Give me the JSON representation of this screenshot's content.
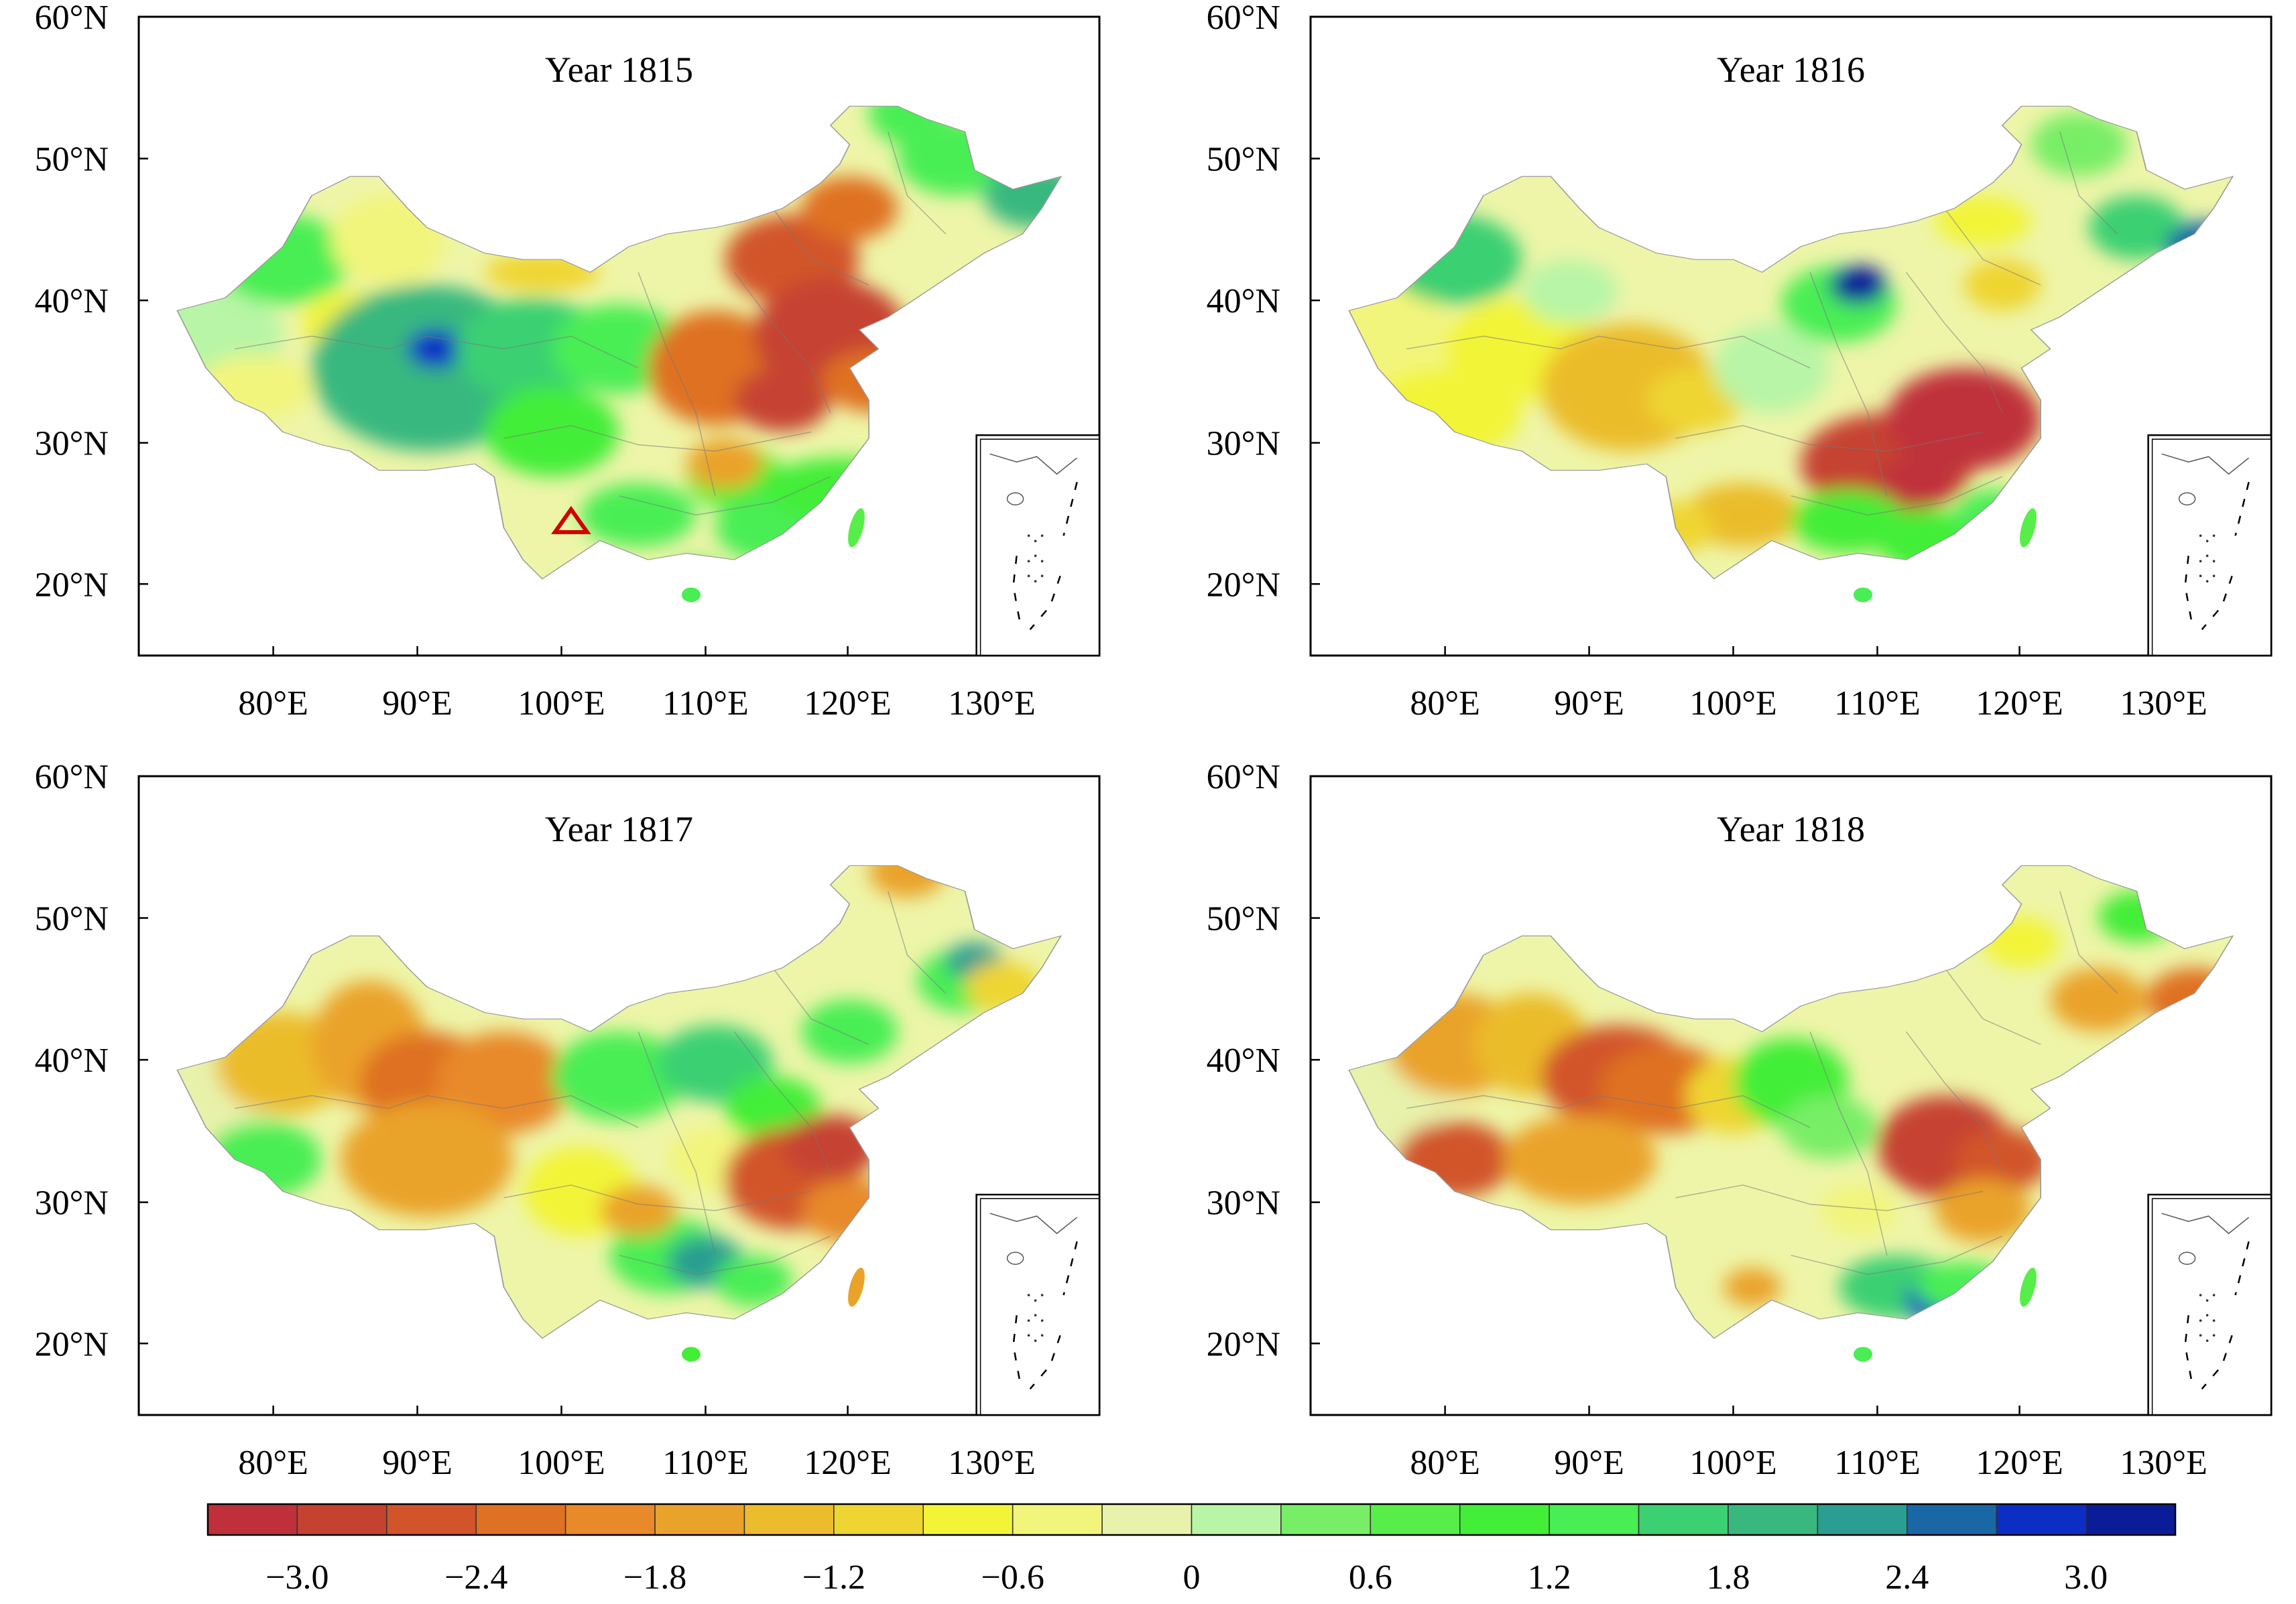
{
  "panels": [
    {
      "title": "Year 1815",
      "marker": "red-triangle",
      "blobs": [
        [
          0.05,
          0.5,
          0.1,
          0.09,
          0.2
        ],
        [
          0.15,
          0.38,
          0.07,
          0.07,
          1.3
        ],
        [
          0.26,
          0.35,
          0.06,
          0.07,
          -0.5
        ],
        [
          0.22,
          0.48,
          0.05,
          0.05,
          -0.7
        ],
        [
          0.12,
          0.58,
          0.06,
          0.05,
          -0.5
        ],
        [
          0.3,
          0.55,
          0.12,
          0.13,
          1.8
        ],
        [
          0.31,
          0.52,
          0.03,
          0.03,
          2.8
        ],
        [
          0.41,
          0.52,
          0.08,
          0.08,
          1.5
        ],
        [
          0.5,
          0.52,
          0.07,
          0.07,
          1.2
        ],
        [
          0.43,
          0.65,
          0.07,
          0.07,
          1.0
        ],
        [
          0.42,
          0.4,
          0.06,
          0.03,
          -1.0
        ],
        [
          0.52,
          0.78,
          0.06,
          0.05,
          1.3
        ],
        [
          0.62,
          0.72,
          0.05,
          0.05,
          0.9
        ],
        [
          0.68,
          0.8,
          0.08,
          0.06,
          1.3
        ],
        [
          0.73,
          0.74,
          0.08,
          0.05,
          1.0
        ],
        [
          0.6,
          0.55,
          0.07,
          0.09,
          -2.4
        ],
        [
          0.68,
          0.38,
          0.07,
          0.07,
          -2.5
        ],
        [
          0.67,
          0.6,
          0.05,
          0.05,
          -2.8
        ],
        [
          0.72,
          0.5,
          0.08,
          0.09,
          -2.8
        ],
        [
          0.77,
          0.57,
          0.06,
          0.05,
          -2.4
        ],
        [
          0.74,
          0.3,
          0.05,
          0.05,
          -2.3
        ],
        [
          0.8,
          0.15,
          0.04,
          0.05,
          1.2
        ],
        [
          0.85,
          0.22,
          0.06,
          0.06,
          1.4
        ],
        [
          0.93,
          0.28,
          0.05,
          0.05,
          2.0
        ],
        [
          0.61,
          0.7,
          0.04,
          0.04,
          -1.6
        ],
        [
          0.58,
          0.88,
          0.03,
          0.03,
          1.3
        ]
      ]
    },
    {
      "title": "Year 1816",
      "marker": "",
      "blobs": [
        [
          0.05,
          0.5,
          0.1,
          0.09,
          -0.5
        ],
        [
          0.15,
          0.38,
          0.07,
          0.07,
          1.5
        ],
        [
          0.22,
          0.52,
          0.08,
          0.08,
          -0.8
        ],
        [
          0.14,
          0.62,
          0.08,
          0.07,
          -0.7
        ],
        [
          0.27,
          0.43,
          0.05,
          0.05,
          0.2
        ],
        [
          0.33,
          0.58,
          0.09,
          0.1,
          -1.4
        ],
        [
          0.4,
          0.6,
          0.05,
          0.05,
          -1.0
        ],
        [
          0.48,
          0.55,
          0.06,
          0.07,
          0.2
        ],
        [
          0.55,
          0.45,
          0.06,
          0.06,
          1.4
        ],
        [
          0.57,
          0.42,
          0.03,
          0.03,
          3.0
        ],
        [
          0.45,
          0.78,
          0.06,
          0.05,
          -1.2
        ],
        [
          0.38,
          0.8,
          0.04,
          0.04,
          -1.0
        ],
        [
          0.6,
          0.7,
          0.09,
          0.08,
          -2.9
        ],
        [
          0.68,
          0.63,
          0.08,
          0.08,
          -3.0
        ],
        [
          0.63,
          0.73,
          0.04,
          0.04,
          -3.0
        ],
        [
          0.56,
          0.79,
          0.06,
          0.05,
          1.1
        ],
        [
          0.64,
          0.82,
          0.05,
          0.05,
          1.0
        ],
        [
          0.71,
          0.78,
          0.04,
          0.04,
          1.3
        ],
        [
          0.7,
          0.32,
          0.05,
          0.04,
          -0.8
        ],
        [
          0.72,
          0.42,
          0.04,
          0.04,
          -1.0
        ],
        [
          0.8,
          0.2,
          0.05,
          0.05,
          0.3
        ],
        [
          0.86,
          0.33,
          0.05,
          0.05,
          1.5
        ],
        [
          0.93,
          0.36,
          0.04,
          0.04,
          2.6
        ],
        [
          0.74,
          0.82,
          0.03,
          0.03,
          0.9
        ]
      ]
    },
    {
      "title": "Year 1817",
      "marker": "",
      "blobs": [
        [
          0.05,
          0.5,
          0.1,
          0.09,
          -0.3
        ],
        [
          0.15,
          0.45,
          0.07,
          0.08,
          -1.2
        ],
        [
          0.13,
          0.6,
          0.06,
          0.06,
          1.4
        ],
        [
          0.24,
          0.42,
          0.06,
          0.1,
          -1.6
        ],
        [
          0.3,
          0.48,
          0.07,
          0.08,
          -2.2
        ],
        [
          0.38,
          0.48,
          0.07,
          0.08,
          -2.0
        ],
        [
          0.3,
          0.6,
          0.09,
          0.09,
          -1.6
        ],
        [
          0.46,
          0.65,
          0.06,
          0.07,
          -0.8
        ],
        [
          0.5,
          0.47,
          0.07,
          0.07,
          1.3
        ],
        [
          0.6,
          0.45,
          0.06,
          0.06,
          1.5
        ],
        [
          0.66,
          0.52,
          0.05,
          0.05,
          1.0
        ],
        [
          0.6,
          0.6,
          0.05,
          0.05,
          -0.4
        ],
        [
          0.55,
          0.75,
          0.06,
          0.06,
          1.3
        ],
        [
          0.59,
          0.76,
          0.04,
          0.04,
          2.1
        ],
        [
          0.64,
          0.79,
          0.04,
          0.04,
          1.2
        ],
        [
          0.68,
          0.63,
          0.07,
          0.08,
          -2.6
        ],
        [
          0.72,
          0.58,
          0.05,
          0.05,
          -2.7
        ],
        [
          0.74,
          0.68,
          0.05,
          0.05,
          -2.0
        ],
        [
          0.74,
          0.4,
          0.05,
          0.05,
          1.4
        ],
        [
          0.8,
          0.15,
          0.04,
          0.04,
          -1.6
        ],
        [
          0.86,
          0.32,
          0.05,
          0.05,
          1.4
        ],
        [
          0.87,
          0.29,
          0.03,
          0.03,
          2.1
        ],
        [
          0.9,
          0.33,
          0.04,
          0.04,
          -1.1
        ],
        [
          0.52,
          0.68,
          0.04,
          0.04,
          -1.8
        ]
      ]
    },
    {
      "title": "Year 1818",
      "marker": "",
      "blobs": [
        [
          0.05,
          0.5,
          0.1,
          0.09,
          -0.3
        ],
        [
          0.15,
          0.42,
          0.07,
          0.08,
          -1.6
        ],
        [
          0.15,
          0.6,
          0.06,
          0.06,
          -2.6
        ],
        [
          0.23,
          0.42,
          0.06,
          0.08,
          -1.4
        ],
        [
          0.32,
          0.47,
          0.08,
          0.08,
          -2.5
        ],
        [
          0.37,
          0.49,
          0.07,
          0.07,
          -2.4
        ],
        [
          0.28,
          0.6,
          0.08,
          0.07,
          -1.6
        ],
        [
          0.44,
          0.5,
          0.05,
          0.06,
          -1.0
        ],
        [
          0.5,
          0.48,
          0.06,
          0.07,
          0.9
        ],
        [
          0.54,
          0.55,
          0.05,
          0.05,
          0.3
        ],
        [
          0.66,
          0.58,
          0.07,
          0.08,
          -2.8
        ],
        [
          0.72,
          0.6,
          0.05,
          0.05,
          -2.5
        ],
        [
          0.7,
          0.68,
          0.05,
          0.05,
          -1.6
        ],
        [
          0.61,
          0.8,
          0.06,
          0.05,
          1.5
        ],
        [
          0.66,
          0.82,
          0.04,
          0.04,
          2.9
        ],
        [
          0.68,
          0.8,
          0.05,
          0.04,
          1.3
        ],
        [
          0.46,
          0.8,
          0.03,
          0.03,
          -1.7
        ],
        [
          0.74,
          0.26,
          0.04,
          0.04,
          -0.8
        ],
        [
          0.82,
          0.35,
          0.05,
          0.05,
          -1.6
        ],
        [
          0.86,
          0.22,
          0.04,
          0.04,
          1.1
        ],
        [
          0.92,
          0.35,
          0.05,
          0.05,
          -2.1
        ],
        [
          0.57,
          0.68,
          0.04,
          0.04,
          -0.6
        ],
        [
          0.78,
          0.74,
          0.04,
          0.04,
          1.0
        ]
      ]
    }
  ],
  "axes": {
    "x_ticks": [
      "80°E",
      "90°E",
      "100°E",
      "110°E",
      "120°E",
      "130°E"
    ],
    "y_ticks": [
      "60°N",
      "50°N",
      "40°N",
      "30°N",
      "20°N"
    ]
  },
  "colorbar": {
    "colors": [
      "#c0303a",
      "#c64230",
      "#d2542b",
      "#df7124",
      "#e8892a",
      "#eaa32a",
      "#ebbc2c",
      "#efd532",
      "#f2f438",
      "#f2f57b",
      "#e8f2ab",
      "#b8f5a6",
      "#78ee66",
      "#58ee49",
      "#43ee38",
      "#49ee54",
      "#3bd072",
      "#38b87f",
      "#2b9e91",
      "#1a67a5",
      "#0d2ec5",
      "#0b1c99"
    ],
    "tick_labels": [
      "−3.0",
      "−2.4",
      "−1.8",
      "−1.2",
      "−0.6",
      "0",
      "0.6",
      "1.2",
      "1.8",
      "2.4",
      "3.0"
    ],
    "tick_values": [
      -3.0,
      -2.4,
      -1.8,
      -1.2,
      -0.6,
      0,
      0.6,
      1.2,
      1.8,
      2.4,
      3.0
    ],
    "range": [
      -3.3,
      3.3
    ]
  }
}
